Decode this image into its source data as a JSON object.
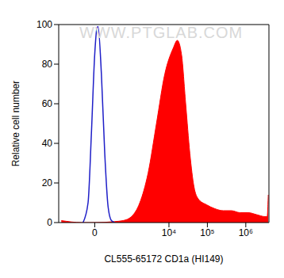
{
  "chart_data": {
    "type": "histogram",
    "xlabel": "CL555-65172 CD1a (HI149)",
    "ylabel": "Relative cell number",
    "annotations": [
      "WWW.PTGLAB.COM"
    ],
    "xlim": [
      -1000,
      4000000
    ],
    "xticks": [
      0,
      {
        "value": 10000,
        "label": "10⁴"
      },
      {
        "value": 100000,
        "label": "10⁵"
      },
      {
        "value": 1000000,
        "label": "10⁶"
      }
    ],
    "ylim": [
      0,
      100
    ],
    "yticks": [
      0,
      20,
      40,
      60,
      80,
      100
    ],
    "series": [
      {
        "type": "area",
        "color": "#ff0000",
        "x": [
          -850,
          -200,
          0,
          353,
          619,
          1043,
          1734,
          2862,
          4727,
          7792,
          12863,
          16520,
          21200,
          27240,
          34960,
          44900,
          57660,
          95050,
          156700,
          258300,
          425900,
          702000,
          1157600,
          1908500,
          3147000,
          3600000,
          3844000
        ],
        "values": [
          1,
          0,
          0,
          0.5,
          1,
          3,
          10,
          25,
          50,
          75,
          88,
          92,
          85,
          60,
          35,
          18,
          12,
          9,
          7,
          6,
          6,
          5,
          5,
          4,
          3,
          3,
          14
        ]
      },
      {
        "type": "line",
        "color": "#1f1fc8",
        "x": [
          -178,
          -96,
          -47,
          0,
          30,
          47,
          96,
          149,
          208,
          275,
          353
        ],
        "values": [
          0,
          10,
          45,
          85,
          98,
          99,
          75,
          35,
          8,
          1,
          0
        ]
      }
    ]
  }
}
